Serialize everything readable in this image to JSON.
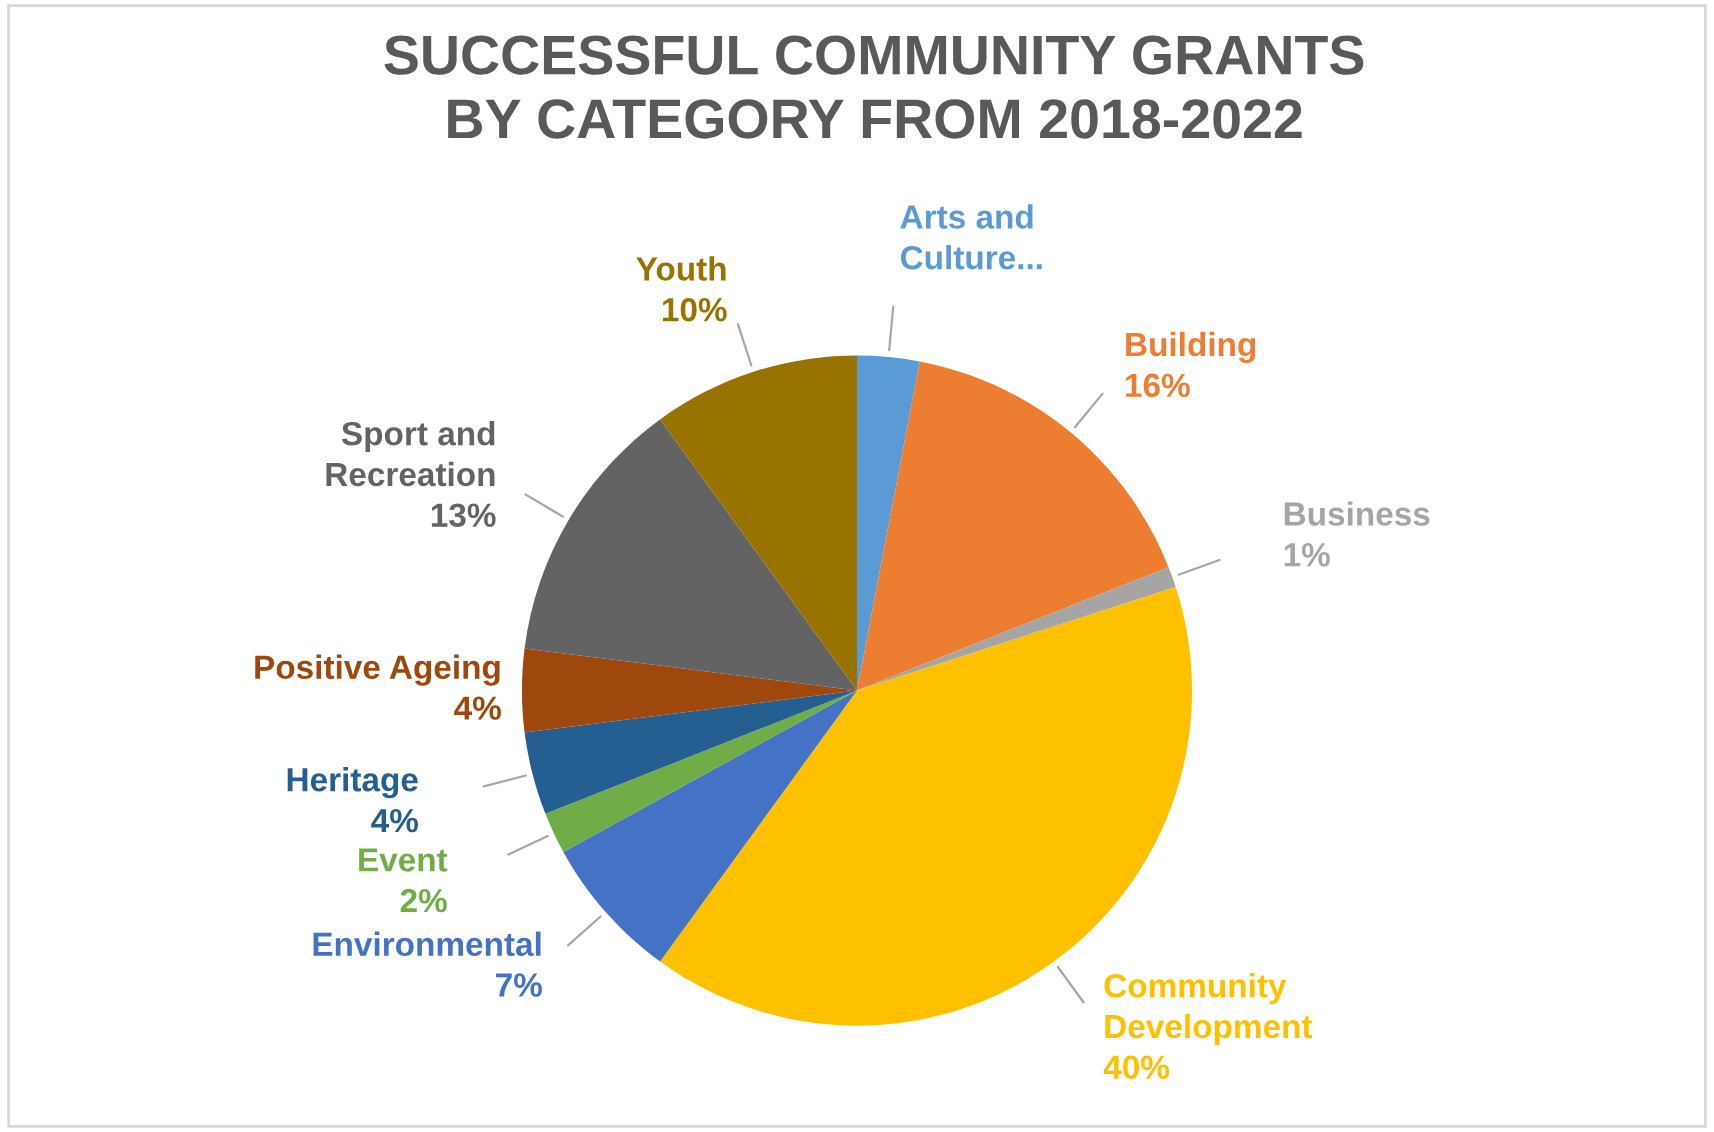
{
  "chart_data": {
    "type": "pie",
    "title": "SUCCESSFUL COMMUNITY GRANTS BY CATEGORY FROM 2018-2022",
    "categories": [
      "Arts and Culture...",
      "Building",
      "Business",
      "Community Development",
      "Environmental",
      "Event",
      "Heritage",
      "Positive Ageing",
      "Sport and Recreation",
      "Youth"
    ],
    "values": [
      3,
      16,
      1,
      40,
      7,
      2,
      4,
      4,
      13,
      10
    ],
    "value_labels": [
      null,
      "16%",
      "1%",
      "40%",
      "7%",
      "2%",
      "4%",
      "4%",
      "13%",
      "10%"
    ],
    "colors": [
      "#5b9bd5",
      "#ed7d31",
      "#a5a5a5",
      "#ffc000",
      "#4472c4",
      "#70ad47",
      "#255e91",
      "#9e480e",
      "#636363",
      "#997300"
    ]
  }
}
